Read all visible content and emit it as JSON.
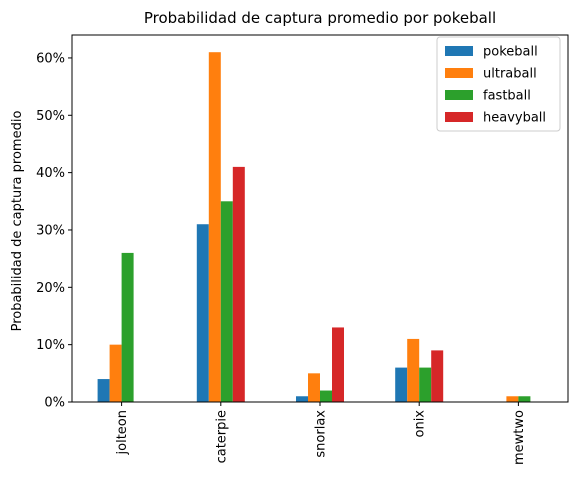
{
  "chart_data": {
    "type": "bar",
    "title": "Probabilidad de captura promedio por pokeball",
    "xlabel": "",
    "ylabel": "Probabilidad de captura promedio",
    "categories": [
      "jolteon",
      "caterpie",
      "snorlax",
      "onix",
      "mewtwo"
    ],
    "series": [
      {
        "name": "pokeball",
        "color": "#1f77b4",
        "values": [
          4,
          31,
          1,
          6,
          0
        ]
      },
      {
        "name": "ultraball",
        "color": "#ff7f0e",
        "values": [
          10,
          61,
          5,
          11,
          1
        ]
      },
      {
        "name": "fastball",
        "color": "#2ca02c",
        "values": [
          26,
          35,
          2,
          6,
          1
        ]
      },
      {
        "name": "heavyball",
        "color": "#d62728",
        "values": [
          0,
          41,
          13,
          9,
          0
        ]
      }
    ],
    "ylim": [
      0,
      64
    ],
    "yticks": [
      0,
      10,
      20,
      30,
      40,
      50,
      60
    ],
    "ytick_labels": [
      "0%",
      "10%",
      "20%",
      "30%",
      "40%",
      "50%",
      "60%"
    ],
    "grid": false,
    "legend_position": "top-right"
  }
}
